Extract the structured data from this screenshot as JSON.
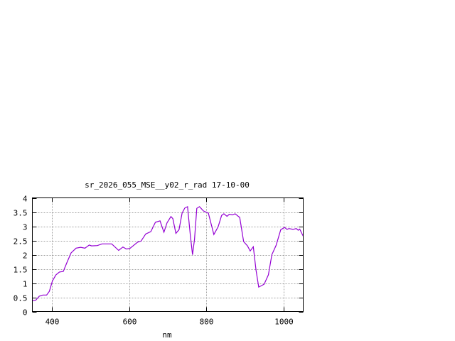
{
  "chart_data": {
    "type": "line",
    "title": "sr_2026_055_MSE__y02_r_rad 17-10-00",
    "xlabel": "nm",
    "ylabel": "",
    "xlim": [
      350,
      1050
    ],
    "ylim": [
      0,
      4
    ],
    "x_ticks": [
      400,
      600,
      800,
      1000
    ],
    "y_ticks": [
      0,
      0.5,
      1,
      1.5,
      2,
      2.5,
      3,
      3.5,
      4
    ],
    "grid": true,
    "legend": "none",
    "series": [
      {
        "color": "#9400d3",
        "x": [
          350,
          359,
          368,
          377,
          387,
          394,
          402,
          411,
          420,
          430,
          439,
          450,
          463,
          475,
          486,
          497,
          503,
          518,
          530,
          555,
          573,
          584,
          593,
          602,
          622,
          631,
          643,
          656,
          668,
          680,
          690,
          698,
          708,
          713,
          721,
          729,
          737,
          744,
          751,
          758,
          764,
          769,
          775,
          782,
          792,
          805,
          819,
          830,
          839,
          845,
          853,
          859,
          867,
          874,
          886,
          896,
          906,
          913,
          921,
          928,
          935,
          949,
          960,
          969,
          980,
          992,
          1002,
          1008,
          1013,
          1024,
          1032,
          1037,
          1041,
          1050
        ],
        "y": [
          0.38,
          0.4,
          0.54,
          0.58,
          0.58,
          0.71,
          1.08,
          1.29,
          1.39,
          1.41,
          1.71,
          2.06,
          2.23,
          2.26,
          2.23,
          2.34,
          2.31,
          2.32,
          2.38,
          2.38,
          2.15,
          2.27,
          2.2,
          2.22,
          2.44,
          2.48,
          2.73,
          2.81,
          3.14,
          3.19,
          2.79,
          3.12,
          3.34,
          3.27,
          2.75,
          2.88,
          3.46,
          3.64,
          3.69,
          2.71,
          2.0,
          2.54,
          3.63,
          3.69,
          3.54,
          3.46,
          2.71,
          2.98,
          3.38,
          3.44,
          3.35,
          3.42,
          3.4,
          3.44,
          3.31,
          2.46,
          2.31,
          2.13,
          2.28,
          1.46,
          0.86,
          0.96,
          1.29,
          2.0,
          2.33,
          2.88,
          2.96,
          2.89,
          2.92,
          2.89,
          2.92,
          2.86,
          2.9,
          2.65
        ]
      }
    ]
  }
}
